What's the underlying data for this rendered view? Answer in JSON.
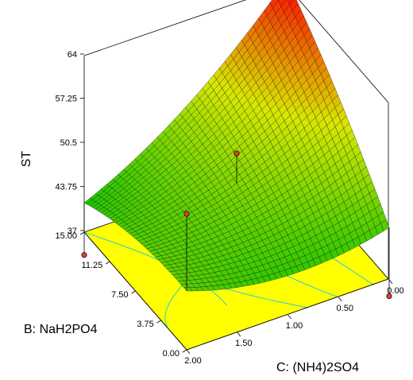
{
  "chart_data": {
    "type": "surface3d",
    "zlabel": "ST",
    "ylabel": "B: NaH2PO4",
    "xlabel": "C: (NH4)2SO4",
    "z_ticks": [
      "64",
      "57.25",
      "50.5",
      "43.75",
      "37"
    ],
    "b_ticks": [
      "15.00",
      "11.25",
      "7.50",
      "3.75",
      "0.00"
    ],
    "c_ticks": [
      "2.00",
      "1.50",
      "1.00",
      "0.50",
      "0.00"
    ],
    "b_range": [
      0,
      15
    ],
    "c_range": [
      0,
      2
    ],
    "z_range": [
      37,
      64
    ],
    "grid": false,
    "corners": [
      {
        "b": 15,
        "c": 2,
        "st": 41.5
      },
      {
        "b": 15,
        "c": 0,
        "st": 65
      },
      {
        "b": 0,
        "c": 0,
        "st": 45
      },
      {
        "b": 0,
        "c": 2,
        "st": 46
      }
    ],
    "design_points": [
      {
        "b": 15,
        "c": 0,
        "st": 64.9
      },
      {
        "b": 7.5,
        "c": 1,
        "st": 52.7
      },
      {
        "b": 15,
        "c": 2,
        "st": 33.5
      },
      {
        "b": 0,
        "c": 0,
        "st": 34.5
      },
      {
        "b": 0,
        "c": 2,
        "st": 57.8
      }
    ],
    "colors": {
      "floor": "#ffff00",
      "contour": "#20d0d8",
      "high": "#ff0000",
      "mid": "#d8e800",
      "low": "#00c000",
      "point": "#e23a3a"
    }
  }
}
